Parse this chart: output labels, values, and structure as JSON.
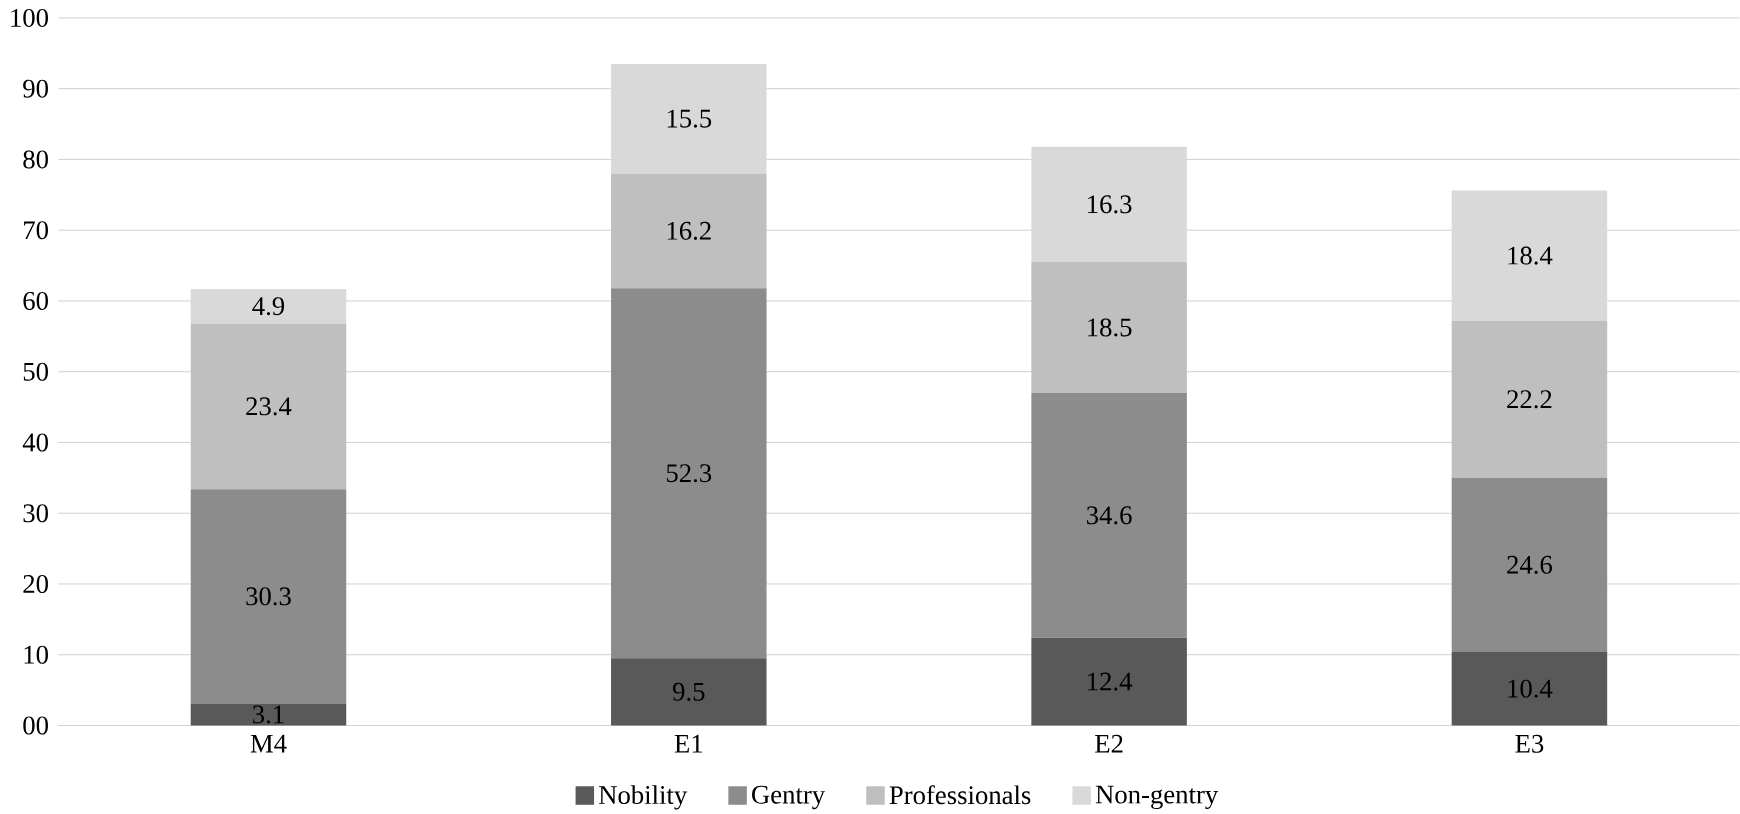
{
  "chart_data": {
    "type": "bar",
    "stacked": true,
    "categories": [
      "M4",
      "E1",
      "E2",
      "E3"
    ],
    "series": [
      {
        "name": "Nobility",
        "color": "#595959",
        "values": [
          3.1,
          9.5,
          12.4,
          10.4
        ]
      },
      {
        "name": "Gentry",
        "color": "#8c8c8c",
        "values": [
          30.3,
          52.3,
          34.6,
          24.6
        ]
      },
      {
        "name": "Professionals",
        "color": "#bfbfbf",
        "values": [
          23.4,
          16.2,
          18.5,
          22.2
        ]
      },
      {
        "name": "Non-gentry",
        "color": "#d9d9d9",
        "values": [
          4.9,
          15.5,
          16.3,
          18.4
        ]
      }
    ],
    "ylim": [
      0,
      100
    ],
    "yticks": [
      {
        "value": 0,
        "label": "00"
      },
      10,
      20,
      30,
      40,
      50,
      60,
      70,
      80,
      90,
      100
    ],
    "grid": "y",
    "legend": "bottom",
    "data_labels": true
  }
}
